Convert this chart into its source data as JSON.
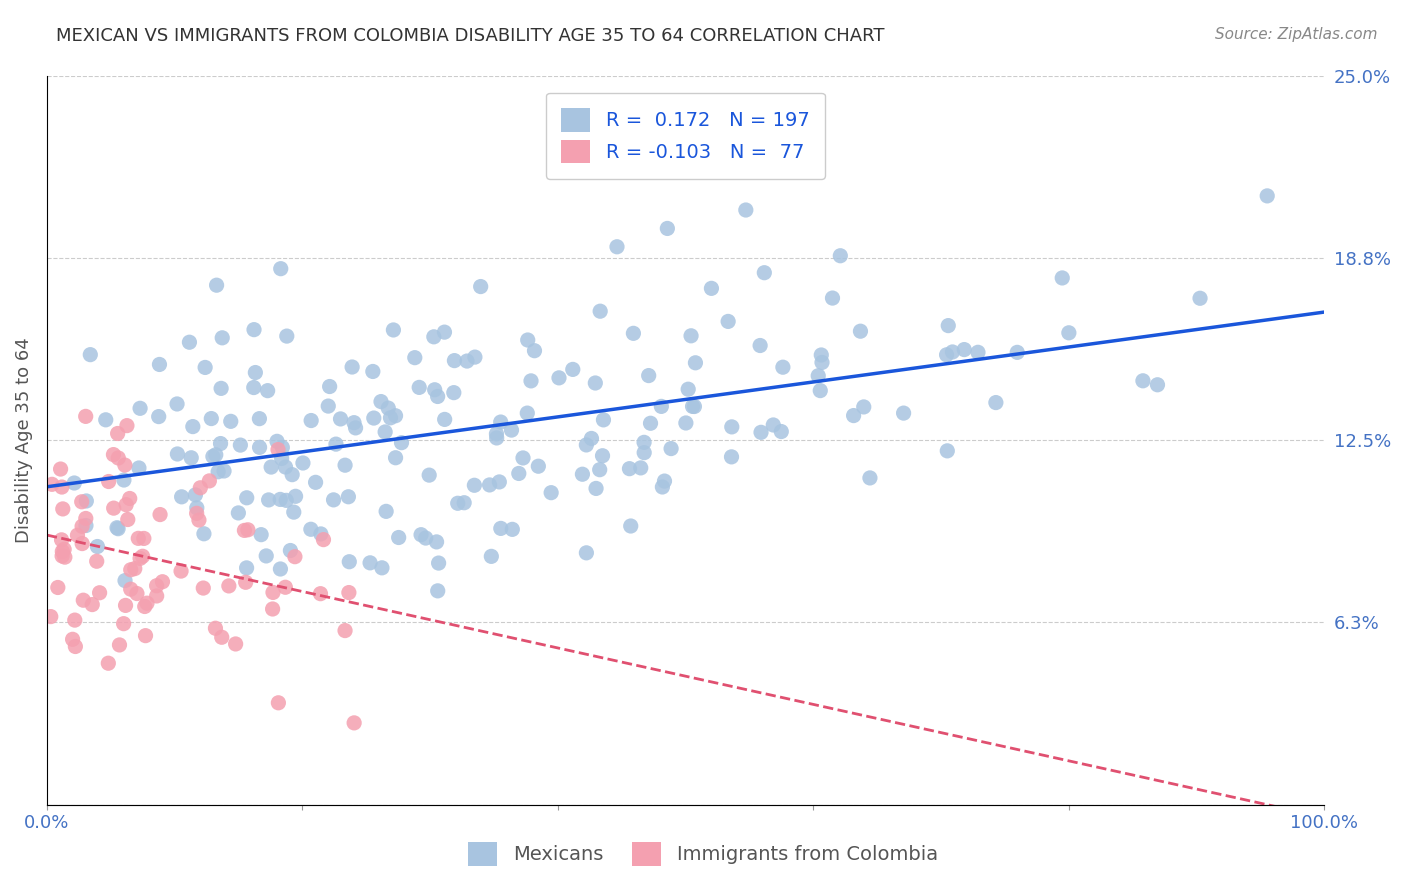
{
  "title": "MEXICAN VS IMMIGRANTS FROM COLOMBIA DISABILITY AGE 35 TO 64 CORRELATION CHART",
  "source": "Source: ZipAtlas.com",
  "xlabel": "",
  "ylabel": "Disability Age 35 to 64",
  "xlim": [
    0,
    1.0
  ],
  "ylim": [
    0,
    0.25
  ],
  "yticks": [
    0.0,
    0.0625,
    0.125,
    0.1875,
    0.25
  ],
  "ytick_labels": [
    "",
    "6.3%",
    "12.5%",
    "18.8%",
    "25.0%"
  ],
  "xtick_labels": [
    "0.0%",
    "",
    "",
    "",
    "",
    "100.0%"
  ],
  "blue_R": 0.172,
  "blue_N": 197,
  "pink_R": -0.103,
  "pink_N": 77,
  "blue_color": "#a8c4e0",
  "blue_line_color": "#1a56db",
  "pink_color": "#f4a0b0",
  "pink_line_color": "#e05070",
  "bg_color": "#ffffff",
  "grid_color": "#cccccc",
  "title_color": "#333333",
  "axis_label_color": "#4472c4",
  "legend_text_color": "#1a56db",
  "seed_blue": 42,
  "seed_pink": 123
}
